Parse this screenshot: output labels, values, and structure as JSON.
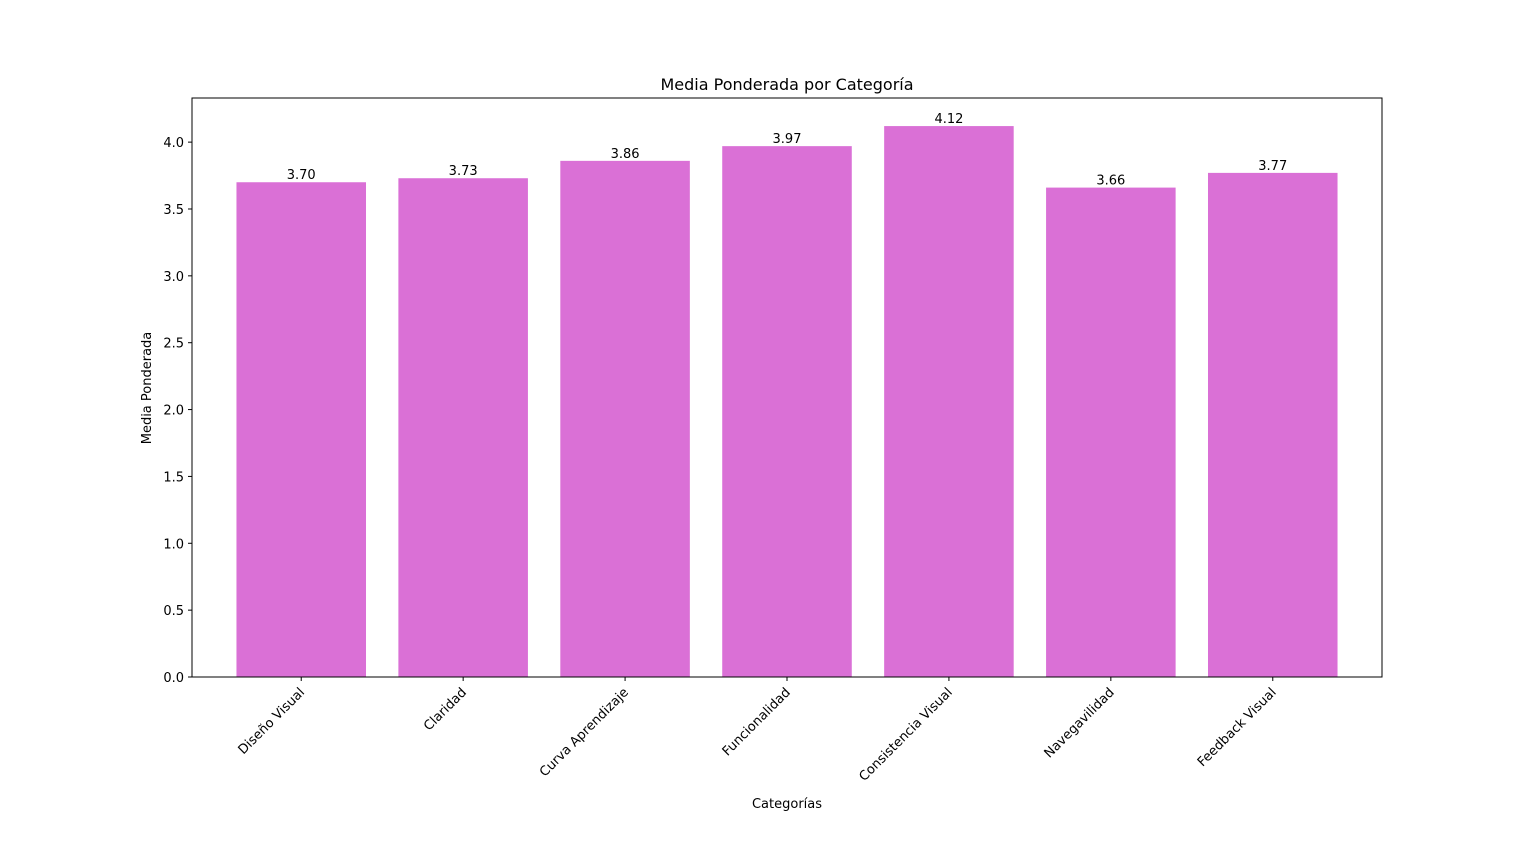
{
  "chart_data": {
    "type": "bar",
    "title": "Media Ponderada por Categoría",
    "xlabel": "Categorías",
    "ylabel": "Media Ponderada",
    "categories": [
      "Diseño Visual",
      "Claridad",
      "Curva Aprendizaje",
      "Funcionalidad",
      "Consistencia Visual",
      "Navegavilidad",
      "Feedback Visual"
    ],
    "values": [
      3.7,
      3.73,
      3.86,
      3.97,
      4.12,
      3.66,
      3.77
    ],
    "value_labels": [
      "3.70",
      "3.73",
      "3.86",
      "3.97",
      "4.12",
      "3.66",
      "3.77"
    ],
    "ylim": [
      0,
      4.33
    ],
    "yticks": [
      0.0,
      0.5,
      1.0,
      1.5,
      2.0,
      2.5,
      3.0,
      3.5,
      4.0
    ],
    "ytick_labels": [
      "0.0",
      "0.5",
      "1.0",
      "1.5",
      "2.0",
      "2.5",
      "3.0",
      "3.5",
      "4.0"
    ],
    "bar_color": "#DA70D6",
    "grid": false,
    "legend": "none"
  }
}
